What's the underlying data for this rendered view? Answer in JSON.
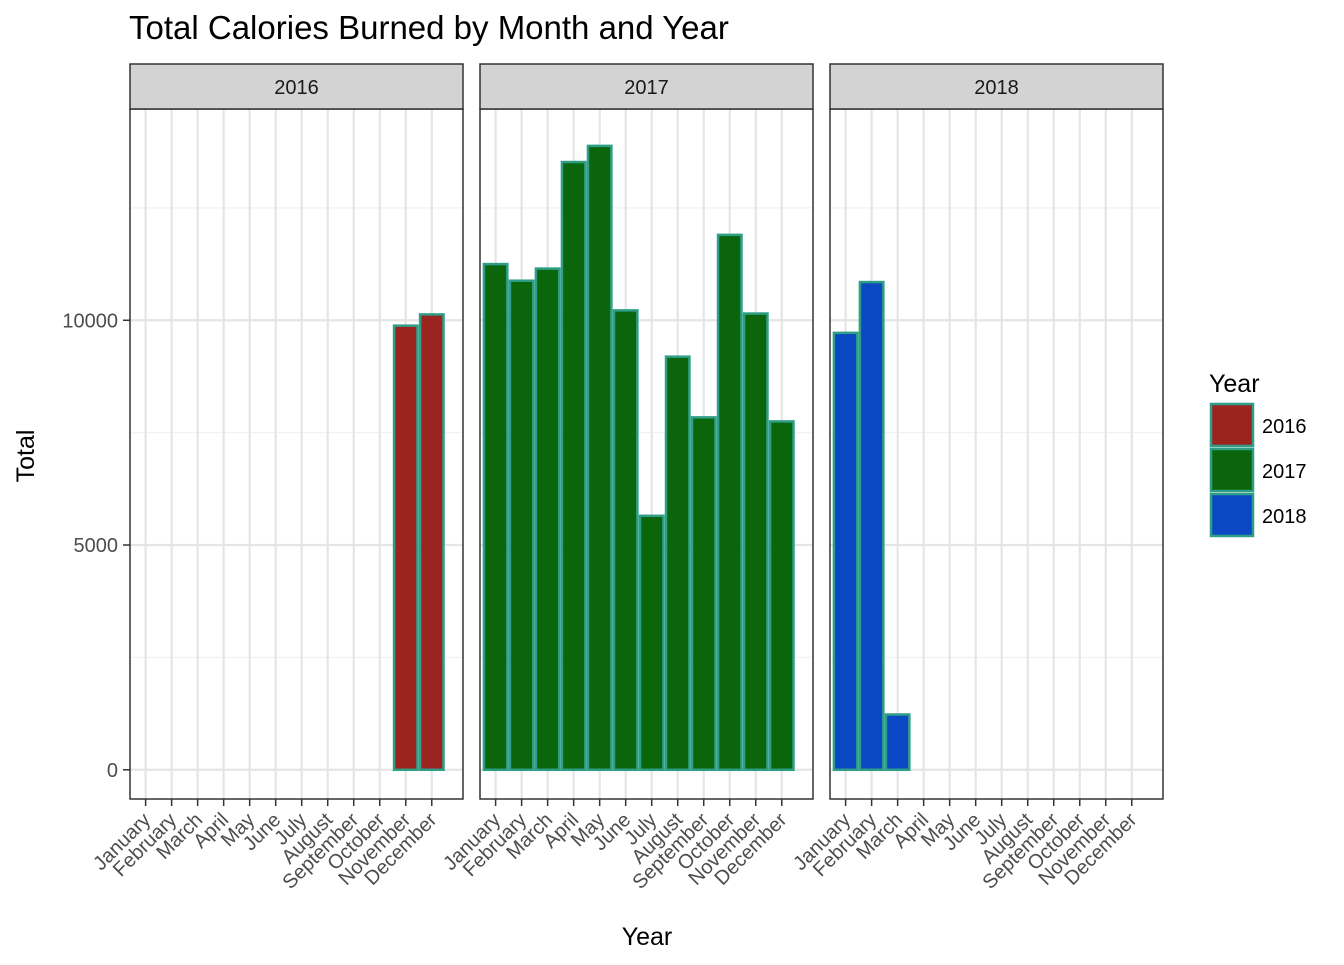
{
  "chart_data": {
    "type": "bar",
    "title": "Total Calories Burned by Month and Year",
    "xlabel": "Year",
    "ylabel": "Total",
    "ylim": [
      -650,
      14700
    ],
    "yticks": [
      0,
      5000,
      10000
    ],
    "grid": true,
    "bar_outline_color": "#2e9e86",
    "categories": [
      "January",
      "February",
      "March",
      "April",
      "May",
      "June",
      "July",
      "August",
      "September",
      "October",
      "November",
      "December"
    ],
    "legend": {
      "title": "Year",
      "position": "right",
      "entries": [
        {
          "label": "2016",
          "color": "#9b2420"
        },
        {
          "label": "2017",
          "color": "#0b650b"
        },
        {
          "label": "2018",
          "color": "#0b48c4"
        }
      ]
    },
    "facets": [
      {
        "label": "2016",
        "color": "#9b2420",
        "values": [
          null,
          null,
          null,
          null,
          null,
          null,
          null,
          null,
          null,
          null,
          9880,
          10130
        ]
      },
      {
        "label": "2017",
        "color": "#0b650b",
        "values": [
          11250,
          10880,
          11150,
          13520,
          13880,
          10220,
          5650,
          9190,
          7840,
          11900,
          10150,
          7750
        ]
      },
      {
        "label": "2018",
        "color": "#0b48c4",
        "values": [
          9720,
          10850,
          1230,
          null,
          null,
          null,
          null,
          null,
          null,
          null,
          null,
          null
        ]
      }
    ]
  }
}
